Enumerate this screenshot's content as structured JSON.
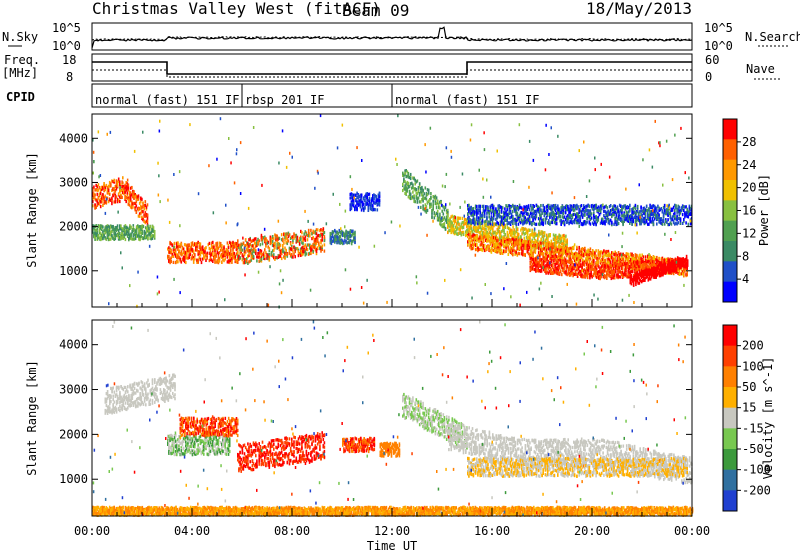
{
  "header": {
    "title": "Christmas Valley West (fitACF)",
    "beam": "Beam 09",
    "date": "18/May/2013"
  },
  "noise_panel": {
    "left_label": "N.Sky",
    "right_label": "N.Search",
    "left_ticks": [
      "10^5",
      "10^0"
    ],
    "right_ticks": [
      "10^5",
      "10^0"
    ]
  },
  "freq_panel": {
    "left_label_line1": "Freq.",
    "left_label_line2": "[MHz]",
    "right_label": "Nave",
    "left_ticks": [
      "18",
      "8"
    ],
    "right_ticks": [
      "60",
      "0"
    ]
  },
  "cpid_panel": {
    "label": "CPID",
    "modes": [
      {
        "start_hour": 0,
        "end_hour": 6,
        "text": "normal (fast) 151 IF"
      },
      {
        "start_hour": 6,
        "end_hour": 12,
        "text": "rbsp 201 IF"
      },
      {
        "start_hour": 12,
        "end_hour": 24,
        "text": "normal (fast) 151 IF"
      }
    ]
  },
  "chart_data": [
    {
      "type": "heatmap",
      "name": "power",
      "ylabel": "Slant Range [km]",
      "yticks": [
        1000,
        2000,
        3000,
        4000
      ],
      "ylim": [
        180,
        4550
      ],
      "xlim": [
        0,
        24
      ],
      "colorbar_label": "Power [dB]",
      "colorbar_ticks": [
        "28",
        "24",
        "20",
        "16",
        "12",
        "8",
        "4"
      ],
      "colors": [
        "#0000ff",
        "#2050c8",
        "#3a8a64",
        "#50a050",
        "#88c040",
        "#f0c000",
        "#ff9900",
        "#ff6000",
        "#ff0000"
      ]
    },
    {
      "type": "heatmap",
      "name": "velocity",
      "ylabel": "Slant Range [km]",
      "yticks": [
        1000,
        2000,
        3000,
        4000
      ],
      "ylim": [
        180,
        4550
      ],
      "xlim": [
        0,
        24
      ],
      "xlabel": "Time UT",
      "xticks": [
        "00:00",
        "04:00",
        "08:00",
        "12:00",
        "16:00",
        "20:00",
        "00:00"
      ],
      "colorbar_label": "Velocity [m s^-1]",
      "colorbar_ticks": [
        "200",
        "100",
        "50",
        "15",
        "-15",
        "-50",
        "-100",
        "-200"
      ],
      "colors": [
        "#2040d0",
        "#3070a0",
        "#3c9a3c",
        "#78c850",
        "#c8c8c0",
        "#ffb000",
        "#ff8000",
        "#ff4000",
        "#ff0000"
      ]
    }
  ]
}
